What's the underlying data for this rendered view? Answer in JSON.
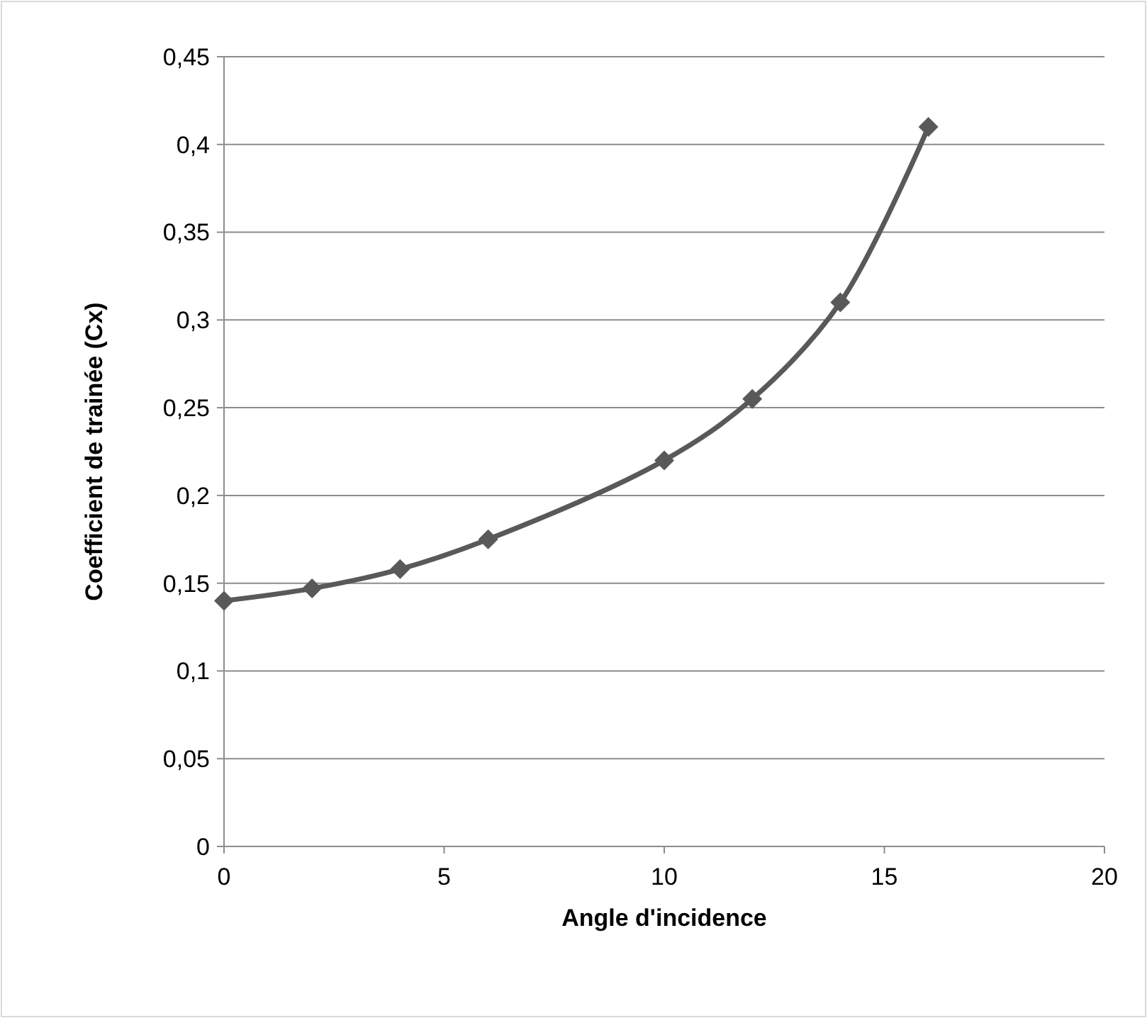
{
  "chart_data": {
    "type": "line",
    "xlabel": "Angle d'incidence",
    "ylabel": "Coefficient de trainée (Cx)",
    "x": [
      0,
      2,
      4,
      6,
      10,
      12,
      14,
      16
    ],
    "series": [
      {
        "color": "#595959",
        "values": [
          0.14,
          0.147,
          0.158,
          0.175,
          0.22,
          0.255,
          0.31,
          0.41
        ]
      }
    ],
    "xlim": [
      0,
      20
    ],
    "xticks": [
      0,
      5,
      10,
      15,
      20
    ],
    "ylim": [
      0,
      0.45
    ],
    "yticks": [
      0,
      {
        "value": 0.05,
        "label": "0,05"
      },
      {
        "value": 0.1,
        "label": "0,1"
      },
      {
        "value": 0.15,
        "label": "0,15"
      },
      {
        "value": 0.2,
        "label": "0,2"
      },
      {
        "value": 0.25,
        "label": "0,25"
      },
      {
        "value": 0.3,
        "label": "0,3"
      },
      {
        "value": 0.35,
        "label": "0,35"
      },
      {
        "value": 0.4,
        "label": "0,4"
      },
      {
        "value": 0.45,
        "label": "0,45"
      }
    ],
    "grid": "y",
    "marker": "diamond",
    "line_style": "solid"
  }
}
